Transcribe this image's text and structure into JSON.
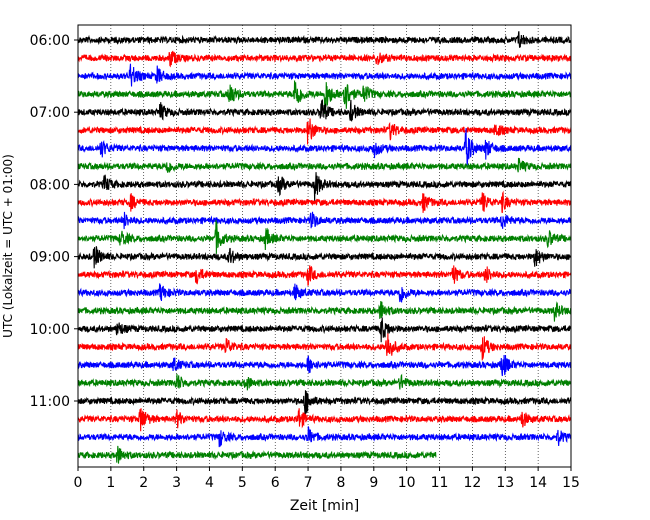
{
  "chart_data": {
    "type": "line",
    "title": "",
    "xlabel": "Zeit  [min]",
    "ylabel": "UTC (Lokalzeit = UTC + 01:00)",
    "xlim": [
      0,
      15
    ],
    "x_ticks": [
      "0",
      "1",
      "2",
      "3",
      "4",
      "5",
      "6",
      "7",
      "8",
      "9",
      "10",
      "11",
      "12",
      "13",
      "14",
      "15"
    ],
    "y_ticks": [
      {
        "row": 0,
        "label": "06:00"
      },
      {
        "row": 4,
        "label": "07:00"
      },
      {
        "row": 8,
        "label": "08:00"
      },
      {
        "row": 12,
        "label": "09:00"
      },
      {
        "row": 16,
        "label": "10:00"
      },
      {
        "row": 20,
        "label": "11:00"
      }
    ],
    "grid": "vertical dotted at each minute",
    "row_duration_min": 15,
    "colors": [
      "#000000",
      "#ff0000",
      "#0000ff",
      "#008000"
    ],
    "rows": [
      {
        "start": "06:00",
        "color": "#000000",
        "end_min": 15,
        "events": [
          {
            "t": 13.4,
            "a": 0.6
          }
        ]
      },
      {
        "start": "06:15",
        "color": "#ff0000",
        "end_min": 15,
        "events": [
          {
            "t": 2.8,
            "a": 0.6
          },
          {
            "t": 9.1,
            "a": 0.5
          }
        ]
      },
      {
        "start": "06:30",
        "color": "#0000ff",
        "end_min": 15,
        "events": [
          {
            "t": 1.6,
            "a": 0.9
          },
          {
            "t": 2.4,
            "a": 0.6
          }
        ]
      },
      {
        "start": "06:45",
        "color": "#008000",
        "end_min": 15,
        "events": [
          {
            "t": 4.6,
            "a": 0.9
          },
          {
            "t": 6.6,
            "a": 1.3
          },
          {
            "t": 7.5,
            "a": 1.4
          },
          {
            "t": 8.1,
            "a": 1.4
          },
          {
            "t": 8.7,
            "a": 0.7
          }
        ]
      },
      {
        "start": "07:00",
        "color": "#000000",
        "end_min": 15,
        "events": [
          {
            "t": 2.5,
            "a": 0.6
          },
          {
            "t": 7.4,
            "a": 1.0
          },
          {
            "t": 8.3,
            "a": 0.7
          }
        ]
      },
      {
        "start": "07:15",
        "color": "#ff0000",
        "end_min": 15,
        "events": [
          {
            "t": 7.0,
            "a": 1.1
          },
          {
            "t": 9.5,
            "a": 0.6
          },
          {
            "t": 12.7,
            "a": 0.5
          }
        ]
      },
      {
        "start": "07:30",
        "color": "#0000ff",
        "end_min": 15,
        "events": [
          {
            "t": 0.7,
            "a": 0.6
          },
          {
            "t": 9.0,
            "a": 0.6
          },
          {
            "t": 11.8,
            "a": 1.4
          },
          {
            "t": 12.4,
            "a": 0.7
          }
        ]
      },
      {
        "start": "07:45",
        "color": "#008000",
        "end_min": 15,
        "events": [
          {
            "t": 2.7,
            "a": 0.5
          },
          {
            "t": 13.4,
            "a": 0.5
          }
        ]
      },
      {
        "start": "08:00",
        "color": "#000000",
        "end_min": 15,
        "events": [
          {
            "t": 0.8,
            "a": 0.6
          },
          {
            "t": 6.1,
            "a": 0.7
          },
          {
            "t": 7.2,
            "a": 1.0
          }
        ]
      },
      {
        "start": "08:15",
        "color": "#ff0000",
        "end_min": 15,
        "events": [
          {
            "t": 1.6,
            "a": 0.5
          },
          {
            "t": 10.5,
            "a": 0.6
          },
          {
            "t": 12.3,
            "a": 0.7
          },
          {
            "t": 12.9,
            "a": 0.6
          }
        ]
      },
      {
        "start": "08:30",
        "color": "#0000ff",
        "end_min": 15,
        "events": [
          {
            "t": 1.4,
            "a": 0.5
          },
          {
            "t": 7.1,
            "a": 0.6
          },
          {
            "t": 12.9,
            "a": 0.6
          }
        ]
      },
      {
        "start": "08:45",
        "color": "#008000",
        "end_min": 15,
        "events": [
          {
            "t": 1.3,
            "a": 0.6
          },
          {
            "t": 4.2,
            "a": 1.1
          },
          {
            "t": 5.7,
            "a": 0.7
          },
          {
            "t": 14.3,
            "a": 0.6
          }
        ]
      },
      {
        "start": "09:00",
        "color": "#000000",
        "end_min": 15,
        "events": [
          {
            "t": 0.5,
            "a": 0.8
          },
          {
            "t": 4.6,
            "a": 0.6
          },
          {
            "t": 13.9,
            "a": 0.7
          }
        ]
      },
      {
        "start": "09:15",
        "color": "#ff0000",
        "end_min": 15,
        "events": [
          {
            "t": 3.6,
            "a": 0.6
          },
          {
            "t": 7.0,
            "a": 0.7
          },
          {
            "t": 11.4,
            "a": 0.7
          },
          {
            "t": 12.4,
            "a": 0.6
          }
        ]
      },
      {
        "start": "09:30",
        "color": "#0000ff",
        "end_min": 15,
        "events": [
          {
            "t": 2.5,
            "a": 0.6
          },
          {
            "t": 6.6,
            "a": 0.6
          },
          {
            "t": 9.8,
            "a": 0.8
          }
        ]
      },
      {
        "start": "09:45",
        "color": "#008000",
        "end_min": 15,
        "events": [
          {
            "t": 9.2,
            "a": 0.7
          },
          {
            "t": 14.5,
            "a": 0.6
          }
        ]
      },
      {
        "start": "10:00",
        "color": "#000000",
        "end_min": 15,
        "events": [
          {
            "t": 1.2,
            "a": 0.5
          },
          {
            "t": 9.2,
            "a": 1.0
          }
        ]
      },
      {
        "start": "10:15",
        "color": "#ff0000",
        "end_min": 15,
        "events": [
          {
            "t": 4.5,
            "a": 0.6
          },
          {
            "t": 9.4,
            "a": 1.2
          },
          {
            "t": 12.3,
            "a": 0.9
          }
        ]
      },
      {
        "start": "10:30",
        "color": "#0000ff",
        "end_min": 15,
        "events": [
          {
            "t": 2.9,
            "a": 0.5
          },
          {
            "t": 7.0,
            "a": 0.6
          },
          {
            "t": 12.9,
            "a": 1.0
          }
        ]
      },
      {
        "start": "10:45",
        "color": "#008000",
        "end_min": 15,
        "events": [
          {
            "t": 3.0,
            "a": 0.6
          },
          {
            "t": 5.1,
            "a": 0.5
          },
          {
            "t": 9.8,
            "a": 0.5
          }
        ]
      },
      {
        "start": "11:00",
        "color": "#000000",
        "end_min": 15,
        "events": [
          {
            "t": 6.9,
            "a": 1.0
          }
        ]
      },
      {
        "start": "11:15",
        "color": "#ff0000",
        "end_min": 15,
        "events": [
          {
            "t": 1.9,
            "a": 1.0
          },
          {
            "t": 3.0,
            "a": 0.6
          },
          {
            "t": 6.7,
            "a": 0.8
          },
          {
            "t": 13.5,
            "a": 0.6
          }
        ]
      },
      {
        "start": "11:30",
        "color": "#0000ff",
        "end_min": 15,
        "events": [
          {
            "t": 4.3,
            "a": 0.6
          },
          {
            "t": 7.0,
            "a": 0.6
          },
          {
            "t": 14.6,
            "a": 0.5
          }
        ]
      },
      {
        "start": "11:45",
        "color": "#008000",
        "end_min": 10.9,
        "events": [
          {
            "t": 1.2,
            "a": 0.6
          }
        ]
      }
    ]
  }
}
